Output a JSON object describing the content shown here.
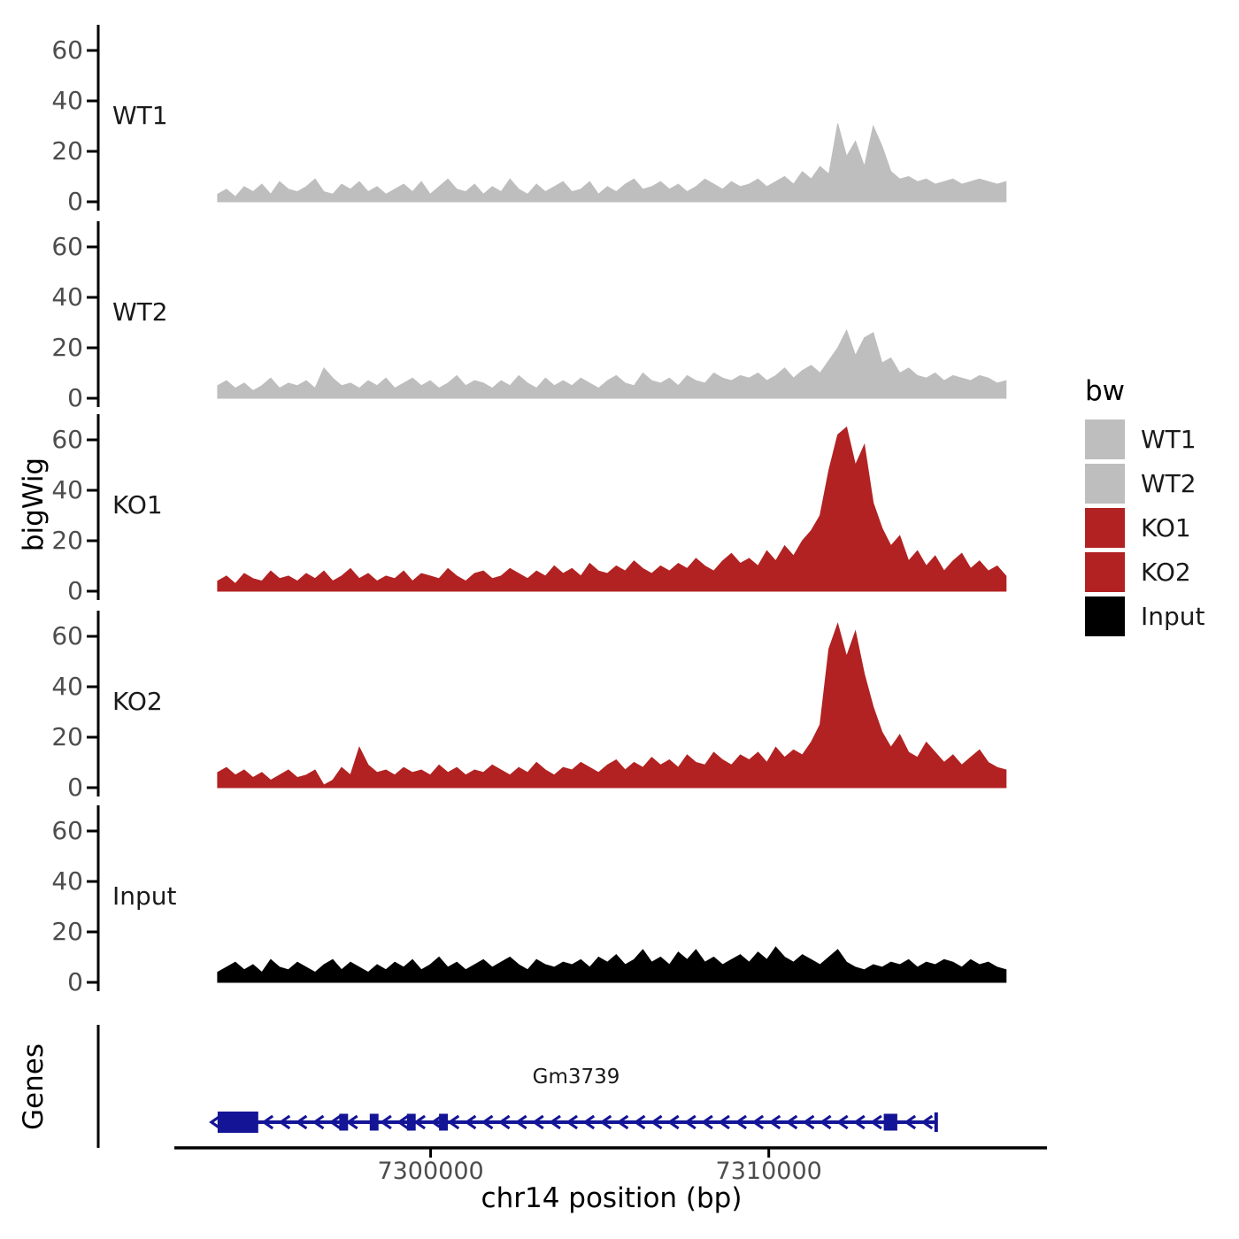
{
  "bigwig_axis_title": "bigWig",
  "genes_panel": {
    "title": "Genes",
    "gene": {
      "name": "Gm3739",
      "strand": "-",
      "start": 7293700,
      "end": 7314950,
      "color": "#141496",
      "exons": [
        {
          "start": 7293700,
          "end": 7294900,
          "tall": true
        },
        {
          "start": 7297300,
          "end": 7297560,
          "tall": false
        },
        {
          "start": 7298200,
          "end": 7298460,
          "tall": false
        },
        {
          "start": 7299300,
          "end": 7299560,
          "tall": false
        },
        {
          "start": 7300250,
          "end": 7300510,
          "tall": false
        },
        {
          "start": 7313400,
          "end": 7313800,
          "tall": false
        }
      ]
    }
  },
  "xaxis": {
    "title": "chr14 position (bp)",
    "domain_bp": [
      7292500,
      7318200
    ],
    "tick_values": [
      7300000,
      7310000
    ],
    "tick_labels": [
      "7300000",
      "7310000"
    ]
  },
  "legend": {
    "title": "bw",
    "items": [
      {
        "label": "WT1",
        "color": "#bebebe"
      },
      {
        "label": "WT2",
        "color": "#bebebe"
      },
      {
        "label": "KO1",
        "color": "#b22222"
      },
      {
        "label": "KO2",
        "color": "#b22222"
      },
      {
        "label": "Input",
        "color": "#000000"
      }
    ]
  },
  "colors": {
    "tick_text": "#4d4d4d",
    "axis": "#000000"
  },
  "chart_data": {
    "type": "area",
    "title": "",
    "xlabel": "chr14 position (bp)",
    "ylabel": "bigWig",
    "grid": false,
    "legend_position": "right",
    "y_ticks": [
      0,
      20,
      40,
      60
    ],
    "ylim": [
      0,
      68
    ],
    "x_start_bp": 7293700,
    "x_step_bp": 262,
    "tracks": [
      {
        "name": "WT1",
        "color": "#bebebe",
        "values": [
          3,
          5,
          2,
          6,
          4,
          7,
          3,
          8,
          5,
          4,
          6,
          9,
          4,
          3,
          7,
          5,
          8,
          4,
          6,
          3,
          5,
          7,
          4,
          8,
          3,
          6,
          9,
          5,
          4,
          7,
          3,
          6,
          4,
          9,
          5,
          3,
          7,
          4,
          6,
          8,
          4,
          5,
          8,
          3,
          6,
          4,
          7,
          9,
          5,
          6,
          8,
          5,
          7,
          4,
          6,
          9,
          7,
          5,
          8,
          6,
          7,
          9,
          6,
          8,
          10,
          7,
          12,
          9,
          14,
          11,
          31,
          18,
          24,
          14,
          30,
          22,
          12,
          9,
          10,
          8,
          9,
          7,
          8,
          9,
          7,
          8,
          9,
          8,
          7,
          8
        ]
      },
      {
        "name": "WT2",
        "color": "#bebebe",
        "values": [
          5,
          7,
          4,
          6,
          3,
          5,
          8,
          4,
          6,
          5,
          7,
          4,
          12,
          8,
          5,
          6,
          4,
          7,
          5,
          8,
          4,
          6,
          8,
          5,
          7,
          4,
          6,
          9,
          5,
          7,
          6,
          4,
          7,
          5,
          9,
          6,
          4,
          8,
          5,
          7,
          5,
          8,
          6,
          4,
          7,
          9,
          6,
          5,
          10,
          7,
          6,
          8,
          5,
          9,
          7,
          6,
          10,
          8,
          7,
          9,
          8,
          10,
          7,
          9,
          12,
          8,
          11,
          13,
          10,
          15,
          20,
          27,
          17,
          24,
          26,
          14,
          16,
          10,
          12,
          9,
          8,
          10,
          7,
          9,
          8,
          7,
          9,
          8,
          6,
          7
        ]
      },
      {
        "name": "KO1",
        "color": "#b22222",
        "values": [
          4,
          6,
          3,
          7,
          5,
          4,
          8,
          5,
          6,
          4,
          7,
          5,
          8,
          4,
          6,
          9,
          5,
          7,
          4,
          6,
          5,
          8,
          4,
          7,
          6,
          5,
          9,
          6,
          4,
          7,
          8,
          5,
          6,
          9,
          7,
          5,
          8,
          6,
          10,
          7,
          9,
          6,
          11,
          8,
          7,
          10,
          8,
          12,
          9,
          7,
          10,
          8,
          11,
          9,
          13,
          10,
          8,
          12,
          15,
          11,
          13,
          10,
          16,
          12,
          18,
          14,
          20,
          24,
          30,
          48,
          62,
          65,
          50,
          58,
          35,
          25,
          18,
          22,
          12,
          16,
          10,
          14,
          8,
          12,
          15,
          9,
          12,
          8,
          10,
          6
        ]
      },
      {
        "name": "KO2",
        "color": "#b22222",
        "values": [
          6,
          8,
          5,
          7,
          4,
          6,
          3,
          5,
          7,
          4,
          5,
          7,
          1,
          3,
          8,
          5,
          16,
          9,
          6,
          7,
          5,
          8,
          6,
          7,
          5,
          9,
          6,
          8,
          5,
          7,
          6,
          9,
          7,
          5,
          8,
          6,
          10,
          7,
          5,
          8,
          7,
          10,
          8,
          6,
          9,
          11,
          7,
          10,
          8,
          12,
          9,
          11,
          8,
          13,
          10,
          9,
          14,
          11,
          9,
          13,
          11,
          14,
          10,
          16,
          12,
          15,
          13,
          18,
          25,
          55,
          65,
          52,
          62,
          45,
          32,
          22,
          16,
          21,
          14,
          12,
          18,
          14,
          10,
          13,
          9,
          12,
          15,
          10,
          8,
          7
        ]
      },
      {
        "name": "Input",
        "color": "#000000",
        "values": [
          4,
          6,
          8,
          5,
          7,
          4,
          9,
          6,
          5,
          8,
          6,
          4,
          7,
          9,
          5,
          8,
          6,
          4,
          7,
          5,
          8,
          6,
          9,
          5,
          7,
          10,
          6,
          8,
          5,
          7,
          9,
          6,
          8,
          10,
          7,
          5,
          9,
          7,
          6,
          8,
          7,
          9,
          6,
          10,
          8,
          11,
          7,
          9,
          13,
          8,
          10,
          7,
          12,
          9,
          13,
          8,
          10,
          7,
          9,
          11,
          8,
          12,
          9,
          14,
          10,
          8,
          11,
          9,
          7,
          10,
          13,
          8,
          6,
          5,
          7,
          6,
          8,
          7,
          9,
          6,
          8,
          7,
          9,
          8,
          6,
          9,
          7,
          8,
          6,
          5
        ]
      }
    ]
  }
}
